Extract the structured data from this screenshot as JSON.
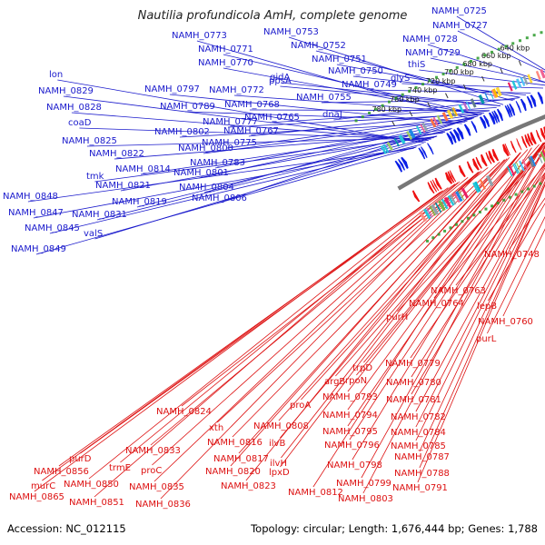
{
  "title": "Nautilia profundicola AmH, complete genome",
  "footer": {
    "accession": "Accession: NC_012115",
    "summary": "Topology: circular; Length: 1,676,444 bp; Genes: 1,788"
  },
  "colors": {
    "forward_label": "#1a1acc",
    "reverse_label": "#dd1111",
    "forward_gene": "#0a1fe6",
    "reverse_gene": "#ee1010",
    "backbone": "#777777"
  },
  "ticks": [
    "640 kbp",
    "660 kbp",
    "680 kbp",
    "700 kbp",
    "720 kbp",
    "740 kbp",
    "760 kbp",
    "780 kbp"
  ],
  "forward_labels": [
    "NAMH_0725",
    "NAMH_0727",
    "NAMH_0728",
    "NAMH_0729",
    "thiS",
    "glyS",
    "NAMH_0753",
    "NAMH_0752",
    "NAMH_0751",
    "NAMH_0750",
    "NAMH_0749",
    "NAMH_0755",
    "dnaJ",
    "NAMH_0773",
    "NAMH_0771",
    "NAMH_0770",
    "gidA",
    "ppsA",
    "NAMH_0772",
    "NAMH_0768",
    "NAMH_0765",
    "NAMH_0777",
    "NAMH_0767",
    "NAMH_0775",
    "NAMH_0797",
    "NAMH_0789",
    "NAMH_0802",
    "NAMH_0800",
    "NAMH_0783",
    "NAMH_0801",
    "NAMH_0804",
    "NAMH_0806",
    "lon",
    "NAMH_0829",
    "NAMH_0828",
    "coaD",
    "NAMH_0825",
    "NAMH_0822",
    "tmk",
    "NAMH_0814",
    "NAMH_0821",
    "NAMH_0819",
    "NAMH_0831",
    "valS",
    "NAMH_0848",
    "NAMH_0847",
    "NAMH_0845",
    "NAMH_0849"
  ],
  "reverse_labels": [
    "NAMH_0748",
    "NAMH_0763",
    "lepB",
    "NAMH_0764",
    "NAMH_0760",
    "purL",
    "purH",
    "trpD",
    "NAMH_0779",
    "argB",
    "rpoN",
    "NAMH_0780",
    "NAMH_0793",
    "NAMH_0781",
    "NAMH_0794",
    "NAMH_0782",
    "NAMH_0795",
    "NAMH_0784",
    "NAMH_0796",
    "NAMH_0785",
    "NAMH_0798",
    "NAMH_0787",
    "NAMH_0788",
    "NAMH_0799",
    "NAMH_0791",
    "NAMH_0803",
    "NAMH_0812",
    "proA",
    "NAMH_0808",
    "ilvB",
    "ilvH",
    "lpxD",
    "NAMH_0824",
    "xth",
    "NAMH_0816",
    "NAMH_0817",
    "NAMH_0820",
    "NAMH_0823",
    "NAMH_0833",
    "proC",
    "NAMH_0835",
    "NAMH_0836",
    "trmE",
    "purD",
    "NAMH_0856",
    "NAMH_0850",
    "murC",
    "NAMH_0851",
    "NAMH_0865"
  ]
}
